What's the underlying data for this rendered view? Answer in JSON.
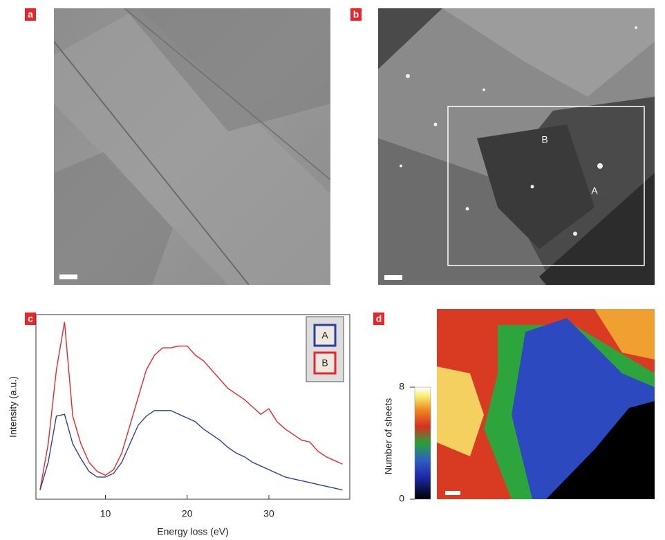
{
  "panel_labels": [
    "a",
    "b",
    "c",
    "d"
  ],
  "image_b": {
    "labels": [
      "B",
      "A"
    ]
  },
  "chart_data": {
    "type": "line",
    "x_label": "Energy loss (eV)",
    "y_label": "Intensity (a.u.)",
    "x": [
      2,
      3,
      4,
      5,
      6,
      7,
      8,
      9,
      10,
      11,
      12,
      13,
      14,
      15,
      16,
      17,
      18,
      19,
      20,
      21,
      22,
      23,
      24,
      25,
      26,
      27,
      28,
      29,
      30,
      31,
      32,
      33,
      34,
      35,
      36,
      37,
      38,
      39
    ],
    "xlim": [
      1.5,
      39.9
    ],
    "xticks": [
      10,
      20,
      30
    ],
    "ylim": [
      0,
      100
    ],
    "legend": "upper right",
    "series": [
      {
        "name": "A",
        "color": "#2b3f9e",
        "values": [
          5,
          20,
          45,
          46,
          30,
          22,
          15,
          12,
          12,
          14,
          20,
          30,
          40,
          45,
          48,
          48,
          48,
          46,
          44,
          42,
          38,
          35,
          32,
          28,
          25,
          23,
          20,
          18,
          16,
          14,
          12,
          11,
          10,
          9,
          8,
          7,
          6,
          5
        ]
      },
      {
        "name": "B",
        "color": "#e8262a",
        "values": [
          5,
          30,
          70,
          96,
          45,
          30,
          20,
          15,
          13,
          16,
          25,
          40,
          55,
          70,
          78,
          82,
          82,
          83,
          83,
          78,
          75,
          70,
          65,
          60,
          57,
          54,
          50,
          46,
          49,
          42,
          38,
          35,
          32,
          31,
          26,
          23,
          21,
          19
        ]
      }
    ]
  },
  "colorbar": {
    "label": "Number of sheets",
    "ticks": [
      0,
      8
    ]
  }
}
